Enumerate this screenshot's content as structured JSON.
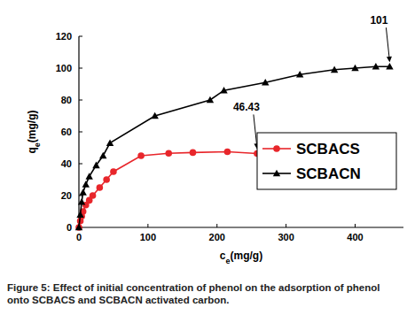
{
  "chart_data": {
    "type": "line",
    "caption": "Figure 5: Effect of initial concentration of phenol on the adsorption of phenol onto SCBACS and SCBACN activated carbon.",
    "x_label": "ce(mg/g)",
    "y_label": "qe(mg/g)",
    "xlim": [
      0,
      470
    ],
    "xticks": [
      0,
      100,
      200,
      300,
      400
    ],
    "ylim": [
      0,
      120
    ],
    "yticks": [
      0,
      20,
      40,
      60,
      80,
      100,
      120
    ],
    "legend": "right",
    "series": [
      {
        "name": "SCBACS",
        "color": "#e8262b",
        "marker": "circle",
        "line_style": "solid",
        "x": [
          0,
          2,
          4,
          6,
          10,
          15,
          20,
          30,
          40,
          50,
          90,
          130,
          165,
          215,
          258
        ],
        "values": [
          0,
          4,
          7,
          10,
          14,
          17,
          20,
          25,
          30,
          35,
          45,
          46.5,
          47,
          47.5,
          46.43
        ]
      },
      {
        "name": "SCBACN",
        "color": "#000000",
        "marker": "triangle",
        "line_style": "solid",
        "x": [
          0,
          2,
          4,
          6,
          10,
          15,
          25,
          35,
          45,
          110,
          190,
          210,
          270,
          320,
          370,
          400,
          430,
          450
        ],
        "values": [
          0,
          8,
          16,
          22,
          27,
          32,
          39,
          45,
          53,
          70,
          80,
          86,
          91,
          96,
          99,
          100,
          101,
          101
        ]
      }
    ],
    "annotations": [
      {
        "text": "46.43",
        "x": 258,
        "y": 46.43
      },
      {
        "text": "101",
        "x": 450,
        "y": 101
      }
    ]
  }
}
